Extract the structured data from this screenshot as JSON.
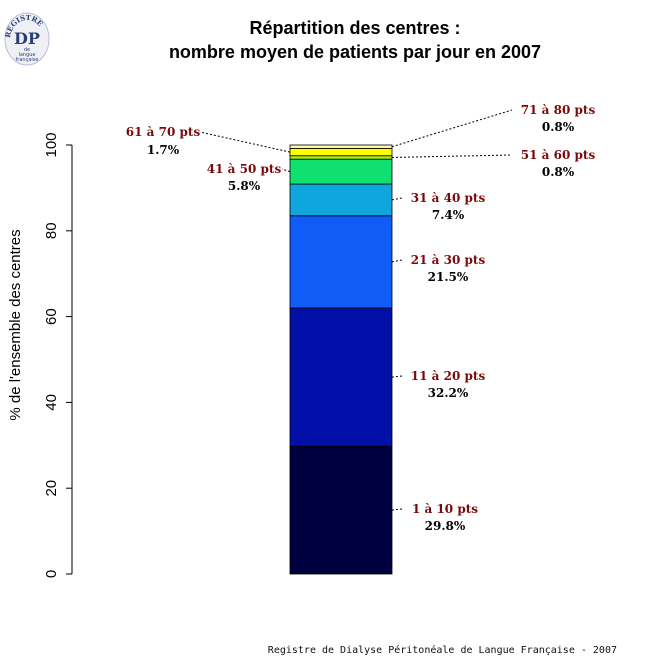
{
  "logo": {
    "ring_text": "REGISTRE",
    "initials": "DP",
    "sub1": "de",
    "sub2": "langue",
    "sub3": "française"
  },
  "footer": "Registre de Dialyse Péritonéale de Langue Française - 2007",
  "chart_data": {
    "type": "bar",
    "stacked": true,
    "title": [
      "Répartition des centres :",
      "nombre moyen de patients par jour en 2007"
    ],
    "xlabel": "",
    "ylabel": "% de l'ensemble des centres",
    "ylim": [
      0,
      100
    ],
    "yticks": [
      "0",
      "20",
      "40",
      "60",
      "80",
      "100"
    ],
    "grid": false,
    "legend": "none",
    "series": [
      {
        "name": "1 à 10 pts",
        "value": 29.8,
        "label": "29.8%",
        "color": "#000040"
      },
      {
        "name": "11 à 20 pts",
        "value": 32.2,
        "label": "32.2%",
        "color": "#0010a8"
      },
      {
        "name": "21 à 30 pts",
        "value": 21.5,
        "label": "21.5%",
        "color": "#0f5cf7"
      },
      {
        "name": "31 à 40 pts",
        "value": 7.4,
        "label": "7.4%",
        "color": "#0fa6dd"
      },
      {
        "name": "41 à 50 pts",
        "value": 5.8,
        "label": "5.8%",
        "color": "#0fe070"
      },
      {
        "name": "51 à 60 pts",
        "value": 0.8,
        "label": "0.8%",
        "color": "#a8ee18"
      },
      {
        "name": "61 à 70 pts",
        "value": 1.7,
        "label": "1.7%",
        "color": "#ffff00"
      },
      {
        "name": "71 à 80 pts",
        "value": 0.8,
        "label": "0.8%",
        "color": "#fff8a8"
      }
    ]
  }
}
